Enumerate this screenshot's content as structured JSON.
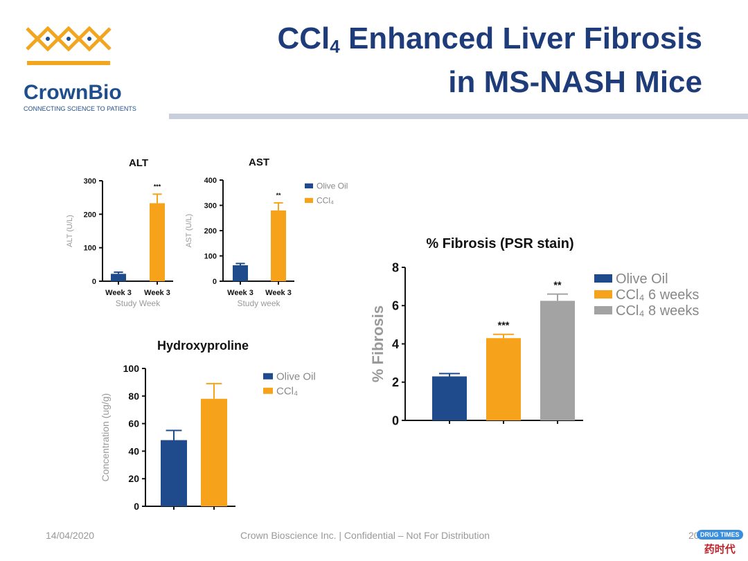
{
  "header": {
    "title_pre": "CCl",
    "title_sub": "4",
    "title_post": " Enhanced Liver Fibrosis",
    "title_line2": "in MS-NASH Mice"
  },
  "logo": {
    "name": "CrownBio",
    "tagline": "CONNECTING SCIENCE TO PATIENTS"
  },
  "footer": {
    "date": "14/04/2020",
    "center": "Crown Bioscience Inc. | Confidential – Not For Distribution",
    "page": "20"
  },
  "watermark": {
    "badge": "DRUG TIMES",
    "chinese": "药时代"
  },
  "colors": {
    "olive": "#1f4a8c",
    "ccl4_6": "#f7a21b",
    "ccl4_8": "#a3a3a3",
    "title": "#1f3c7a"
  },
  "chart_data": [
    {
      "type": "bar",
      "title": "ALT",
      "ylabel": "ALT (U/L)",
      "xlabel": "Study Week",
      "ylim": [
        0,
        300
      ],
      "yticks": [
        0,
        100,
        200,
        300
      ],
      "categories": [
        "Week 3",
        "Week 3"
      ],
      "values": [
        22,
        233
      ],
      "errors": [
        5,
        27
      ],
      "significance": [
        "",
        "***"
      ],
      "series_colors": [
        "olive",
        "ccl4_6"
      ]
    },
    {
      "type": "bar",
      "title": "AST",
      "ylabel": "AST (U/L)",
      "xlabel": "Study week",
      "ylim": [
        0,
        400
      ],
      "yticks": [
        0,
        100,
        200,
        300,
        400
      ],
      "categories": [
        "Week 3",
        "Week 3"
      ],
      "values": [
        63,
        280
      ],
      "errors": [
        7,
        30
      ],
      "significance": [
        "",
        "**"
      ],
      "series_colors": [
        "olive",
        "ccl4_6"
      ],
      "legend": [
        "Olive Oil",
        "CCl₄"
      ]
    },
    {
      "type": "bar",
      "title": "Hydroxyproline",
      "ylabel": "Concentration (ug/g)",
      "xlabel": "",
      "ylim": [
        0,
        100
      ],
      "yticks": [
        0,
        20,
        40,
        60,
        80,
        100
      ],
      "categories": [
        "",
        ""
      ],
      "values": [
        48,
        78
      ],
      "errors": [
        7,
        11
      ],
      "significance": [
        "",
        ""
      ],
      "series_colors": [
        "olive",
        "ccl4_6"
      ],
      "legend": [
        "Olive Oil",
        "CCl₄"
      ]
    },
    {
      "type": "bar",
      "title": "% Fibrosis (PSR stain)",
      "ylabel": "% Fibrosis",
      "xlabel": "",
      "ylim": [
        0,
        8
      ],
      "yticks": [
        0,
        2,
        4,
        6,
        8
      ],
      "categories": [
        "",
        "",
        ""
      ],
      "values": [
        2.3,
        4.3,
        6.25
      ],
      "errors": [
        0.15,
        0.2,
        0.35
      ],
      "significance": [
        "",
        "***",
        "**"
      ],
      "series_colors": [
        "olive",
        "ccl4_6",
        "ccl4_8"
      ],
      "legend": [
        "Olive Oil",
        "CCl₄ 6 weeks",
        "CCl₄ 8 weeks"
      ]
    }
  ]
}
